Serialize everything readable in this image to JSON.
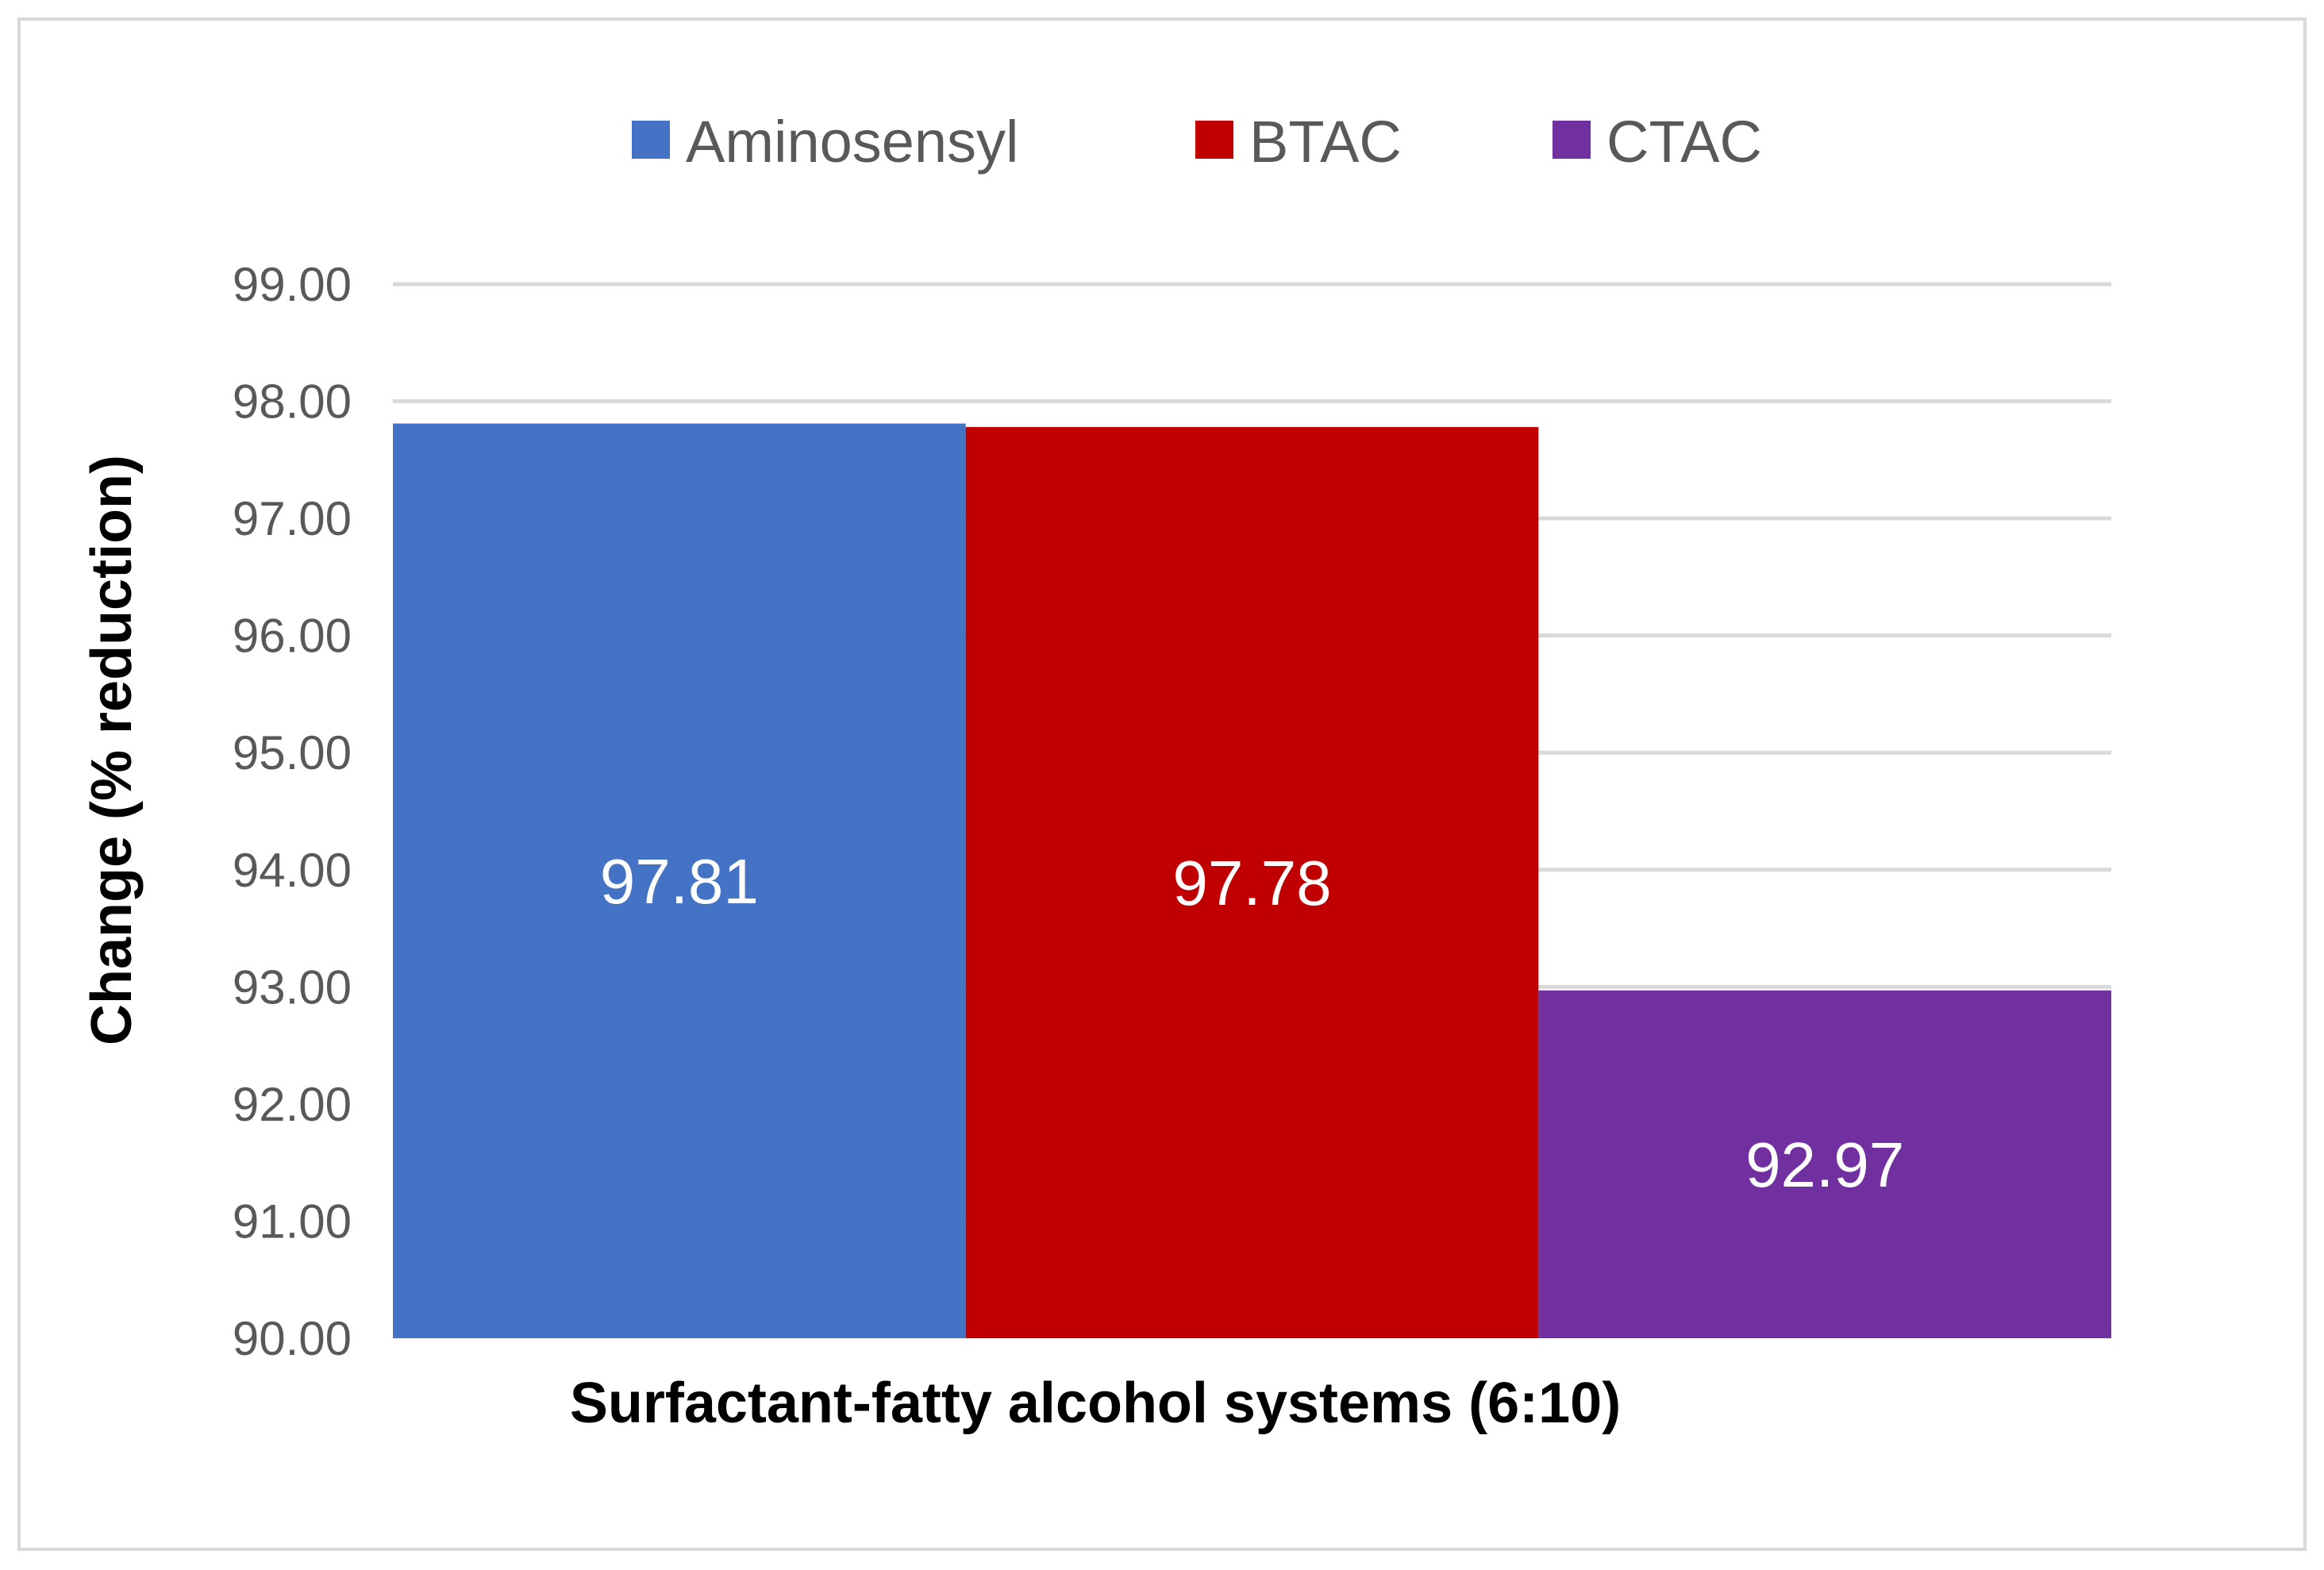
{
  "chart_data": {
    "type": "bar",
    "title": "",
    "xlabel": "Surfactant-fatty alcohol systems (6:10)",
    "ylabel": "Change (% reduction)",
    "ylim": [
      90,
      99
    ],
    "y_ticks": [
      "90.00",
      "91.00",
      "92.00",
      "93.00",
      "94.00",
      "95.00",
      "96.00",
      "97.00",
      "98.00",
      "99.00"
    ],
    "grid": true,
    "legend_position": "top-center",
    "series": [
      {
        "name": "Aminosensyl",
        "value": 97.81,
        "label": "97.81",
        "color": "#4472C4"
      },
      {
        "name": "BTAC",
        "value": 97.78,
        "label": "97.78",
        "color": "#C00000"
      },
      {
        "name": "CTAC",
        "value": 92.97,
        "label": "92.97",
        "color": "#7030A0"
      }
    ]
  }
}
